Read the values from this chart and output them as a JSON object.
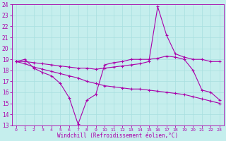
{
  "xlabel": "Windchill (Refroidissement éolien,°C)",
  "background_color": "#c5eeed",
  "grid_color": "#a8dfdf",
  "line_color": "#aa00aa",
  "xlim": [
    -0.5,
    23.5
  ],
  "ylim": [
    13,
    24
  ],
  "yticks": [
    13,
    14,
    15,
    16,
    17,
    18,
    19,
    20,
    21,
    22,
    23,
    24
  ],
  "xticks": [
    0,
    1,
    2,
    3,
    4,
    5,
    6,
    7,
    8,
    9,
    10,
    11,
    12,
    13,
    14,
    15,
    16,
    17,
    18,
    19,
    20,
    21,
    22,
    23
  ],
  "line1_x": [
    0,
    1,
    2,
    3,
    4,
    5,
    6,
    7,
    8,
    9,
    10,
    11,
    12,
    13,
    14,
    15,
    16,
    17,
    18,
    19,
    20,
    21,
    22,
    23
  ],
  "line1_y": [
    18.8,
    19.0,
    18.2,
    17.8,
    17.5,
    16.8,
    15.5,
    13.1,
    15.3,
    15.8,
    18.5,
    18.7,
    18.8,
    19.0,
    19.0,
    19.0,
    19.1,
    19.3,
    19.2,
    19.0,
    18.0,
    16.2,
    16.0,
    15.3
  ],
  "line2_x": [
    0,
    1,
    2,
    3,
    4,
    5,
    6,
    7,
    8,
    9,
    10,
    11,
    12,
    13,
    14,
    15,
    16,
    17,
    18,
    19,
    20,
    21,
    22,
    23
  ],
  "line2_y": [
    18.8,
    18.6,
    18.3,
    18.1,
    17.9,
    17.7,
    17.5,
    17.3,
    17.0,
    16.8,
    16.6,
    16.5,
    16.4,
    16.3,
    16.3,
    16.2,
    16.1,
    16.0,
    15.9,
    15.8,
    15.6,
    15.4,
    15.2,
    15.0
  ],
  "line3_x": [
    0,
    1,
    2,
    3,
    4,
    5,
    6,
    7,
    8,
    9,
    10,
    11,
    12,
    13,
    14,
    15,
    16,
    17,
    18,
    19,
    20,
    21,
    22,
    23
  ],
  "line3_y": [
    18.8,
    18.8,
    18.7,
    18.6,
    18.5,
    18.4,
    18.3,
    18.2,
    18.2,
    18.1,
    18.2,
    18.3,
    18.4,
    18.5,
    18.6,
    18.8,
    23.8,
    21.2,
    19.5,
    19.2,
    19.0,
    19.0,
    18.8,
    18.8
  ]
}
